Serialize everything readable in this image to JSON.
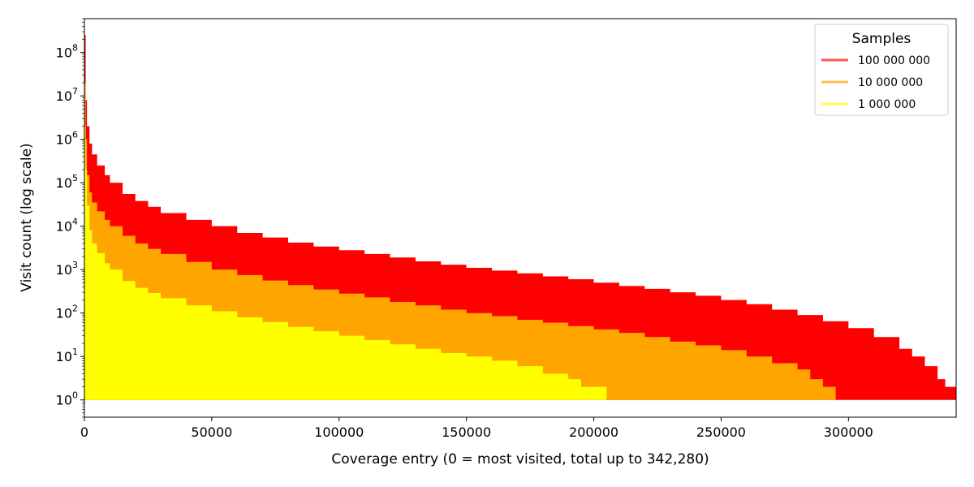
{
  "chart_data": {
    "type": "area",
    "title": "",
    "xlabel": "Coverage entry (0 = most visited, total up to 342,280)",
    "ylabel": "Visit count (log scale)",
    "xlim": [
      0,
      342280
    ],
    "ylim": [
      0.4,
      600000000
    ],
    "yscale": "log",
    "grid": false,
    "x_ticks": [
      0,
      50000,
      100000,
      150000,
      200000,
      250000,
      300000
    ],
    "x_tick_labels": [
      "0",
      "50000",
      "100000",
      "150000",
      "200000",
      "250000",
      "300000"
    ],
    "y_ticks": [
      1,
      10,
      100,
      1000,
      10000,
      100000,
      1000000,
      10000000,
      100000000
    ],
    "y_tick_bases": [
      "10",
      "10",
      "10",
      "10",
      "10",
      "10",
      "10",
      "10",
      "10"
    ],
    "y_tick_exponents": [
      "0",
      "1",
      "2",
      "3",
      "4",
      "5",
      "6",
      "7",
      "8"
    ],
    "legend": {
      "title": "Samples",
      "position": "top-right"
    },
    "series": [
      {
        "name": "100 000 000",
        "color": "#ff0000",
        "legend_color": "#ff5555",
        "points": [
          [
            0,
            250000000
          ],
          [
            500,
            8000000
          ],
          [
            1000,
            2000000
          ],
          [
            2000,
            800000
          ],
          [
            3000,
            450000
          ],
          [
            5000,
            250000
          ],
          [
            8000,
            150000
          ],
          [
            10000,
            100000
          ],
          [
            15000,
            55000
          ],
          [
            20000,
            38000
          ],
          [
            25000,
            28000
          ],
          [
            30000,
            20000
          ],
          [
            40000,
            14000
          ],
          [
            50000,
            10000
          ],
          [
            60000,
            7000
          ],
          [
            70000,
            5500
          ],
          [
            80000,
            4200
          ],
          [
            90000,
            3400
          ],
          [
            100000,
            2800
          ],
          [
            110000,
            2300
          ],
          [
            120000,
            1900
          ],
          [
            130000,
            1550
          ],
          [
            140000,
            1300
          ],
          [
            150000,
            1100
          ],
          [
            160000,
            950
          ],
          [
            170000,
            820
          ],
          [
            180000,
            700
          ],
          [
            190000,
            600
          ],
          [
            200000,
            500
          ],
          [
            210000,
            420
          ],
          [
            220000,
            360
          ],
          [
            230000,
            300
          ],
          [
            240000,
            250
          ],
          [
            250000,
            200
          ],
          [
            260000,
            160
          ],
          [
            270000,
            120
          ],
          [
            280000,
            90
          ],
          [
            290000,
            65
          ],
          [
            300000,
            45
          ],
          [
            310000,
            28
          ],
          [
            320000,
            15
          ],
          [
            325000,
            10
          ],
          [
            330000,
            6
          ],
          [
            335000,
            3
          ],
          [
            338000,
            2
          ],
          [
            342280,
            2
          ]
        ]
      },
      {
        "name": "10 000 000",
        "color": "#ffa500",
        "legend_color": "#ffbb55",
        "points": [
          [
            0,
            20000000
          ],
          [
            500,
            1000000
          ],
          [
            1000,
            150000
          ],
          [
            2000,
            60000
          ],
          [
            3000,
            35000
          ],
          [
            5000,
            22000
          ],
          [
            8000,
            14000
          ],
          [
            10000,
            10000
          ],
          [
            15000,
            6000
          ],
          [
            20000,
            4000
          ],
          [
            25000,
            3000
          ],
          [
            30000,
            2300
          ],
          [
            40000,
            1500
          ],
          [
            50000,
            1000
          ],
          [
            60000,
            750
          ],
          [
            70000,
            560
          ],
          [
            80000,
            440
          ],
          [
            90000,
            350
          ],
          [
            100000,
            280
          ],
          [
            110000,
            230
          ],
          [
            120000,
            180
          ],
          [
            130000,
            150
          ],
          [
            140000,
            120
          ],
          [
            150000,
            100
          ],
          [
            160000,
            85
          ],
          [
            170000,
            70
          ],
          [
            180000,
            60
          ],
          [
            190000,
            50
          ],
          [
            200000,
            42
          ],
          [
            210000,
            35
          ],
          [
            220000,
            28
          ],
          [
            230000,
            22
          ],
          [
            240000,
            18
          ],
          [
            250000,
            14
          ],
          [
            260000,
            10
          ],
          [
            270000,
            7
          ],
          [
            280000,
            5
          ],
          [
            285000,
            3
          ],
          [
            290000,
            2
          ],
          [
            295000,
            2
          ]
        ]
      },
      {
        "name": "1 000 000",
        "color": "#ffff00",
        "legend_color": "#ffff55",
        "points": [
          [
            0,
            2000000
          ],
          [
            500,
            200000
          ],
          [
            1000,
            30000
          ],
          [
            2000,
            8000
          ],
          [
            3000,
            4000
          ],
          [
            5000,
            2400
          ],
          [
            8000,
            1400
          ],
          [
            10000,
            1000
          ],
          [
            15000,
            550
          ],
          [
            20000,
            380
          ],
          [
            25000,
            290
          ],
          [
            30000,
            220
          ],
          [
            40000,
            150
          ],
          [
            50000,
            110
          ],
          [
            60000,
            80
          ],
          [
            70000,
            62
          ],
          [
            80000,
            48
          ],
          [
            90000,
            38
          ],
          [
            100000,
            30
          ],
          [
            110000,
            24
          ],
          [
            120000,
            19
          ],
          [
            130000,
            15
          ],
          [
            140000,
            12
          ],
          [
            150000,
            10
          ],
          [
            160000,
            8
          ],
          [
            170000,
            6
          ],
          [
            180000,
            4
          ],
          [
            190000,
            3
          ],
          [
            195000,
            2
          ],
          [
            205000,
            2
          ]
        ]
      }
    ]
  }
}
